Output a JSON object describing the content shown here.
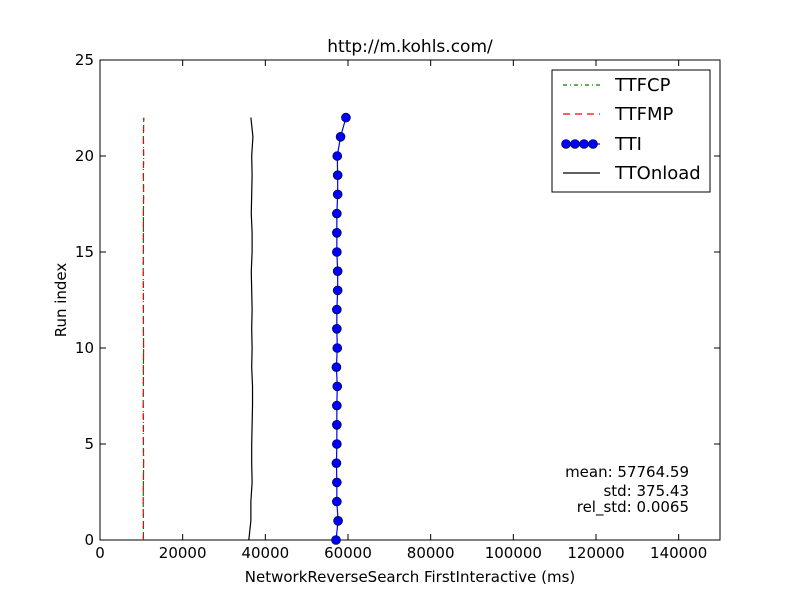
{
  "chart_data": {
    "type": "line",
    "title": "http://m.kohls.com/",
    "xlabel": "NetworkReverseSearch FirstInteractive (ms)",
    "ylabel": "Run index",
    "xlim": [
      0,
      150000
    ],
    "ylim": [
      0,
      25
    ],
    "xticks": [
      0,
      20000,
      40000,
      60000,
      80000,
      100000,
      120000,
      140000
    ],
    "yticks": [
      0,
      5,
      10,
      15,
      20,
      25
    ],
    "grid": false,
    "legend_position": "top-right",
    "series": [
      {
        "name": "TTFCP",
        "color": "#008000",
        "style": "dashdot",
        "marker": "none",
        "x": [
          10500,
          10500,
          10450,
          10500,
          10550,
          10500,
          10500,
          10450,
          10500,
          10500,
          10550,
          10500,
          10500,
          10500,
          10450,
          10500,
          10500,
          10500,
          10550,
          10500,
          10550,
          10500,
          10600
        ],
        "y": [
          0,
          1,
          2,
          3,
          4,
          5,
          6,
          7,
          8,
          9,
          10,
          11,
          12,
          13,
          14,
          15,
          16,
          17,
          18,
          19,
          20,
          21,
          22
        ]
      },
      {
        "name": "TTFMP",
        "color": "#ff0000",
        "style": "dashed",
        "marker": "none",
        "x": [
          10500,
          10500,
          10450,
          10500,
          10550,
          10500,
          10500,
          10450,
          10500,
          10500,
          10550,
          10500,
          10500,
          10500,
          10450,
          10500,
          10500,
          10500,
          10550,
          10500,
          10550,
          10500,
          10600
        ],
        "y": [
          0,
          1,
          2,
          3,
          4,
          5,
          6,
          7,
          8,
          9,
          10,
          11,
          12,
          13,
          14,
          15,
          16,
          17,
          18,
          19,
          20,
          21,
          22
        ]
      },
      {
        "name": "TTI",
        "color": "#0000ff",
        "style": "solid",
        "marker": "circle",
        "x": [
          57100,
          57600,
          57300,
          57300,
          57200,
          57300,
          57300,
          57300,
          57400,
          57200,
          57400,
          57300,
          57300,
          57500,
          57500,
          57300,
          57300,
          57300,
          57500,
          57500,
          57400,
          58200,
          59500
        ],
        "y": [
          0,
          1,
          2,
          3,
          4,
          5,
          6,
          7,
          8,
          9,
          10,
          11,
          12,
          13,
          14,
          15,
          16,
          17,
          18,
          19,
          20,
          21,
          22
        ]
      },
      {
        "name": "TTOnload",
        "color": "#000000",
        "style": "solid",
        "marker": "none",
        "x": [
          36000,
          36500,
          36500,
          36800,
          36700,
          36700,
          36800,
          36900,
          36900,
          36700,
          36800,
          36700,
          36800,
          36700,
          36600,
          36800,
          36800,
          36600,
          36700,
          36800,
          36700,
          37000,
          36500
        ],
        "y": [
          0,
          1,
          2,
          3,
          4,
          5,
          6,
          7,
          8,
          9,
          10,
          11,
          12,
          13,
          14,
          15,
          16,
          17,
          18,
          19,
          20,
          21,
          22
        ]
      }
    ],
    "annotations": [
      "mean: 57764.59",
      "std: 375.43",
      "rel_std: 0.0065"
    ]
  }
}
